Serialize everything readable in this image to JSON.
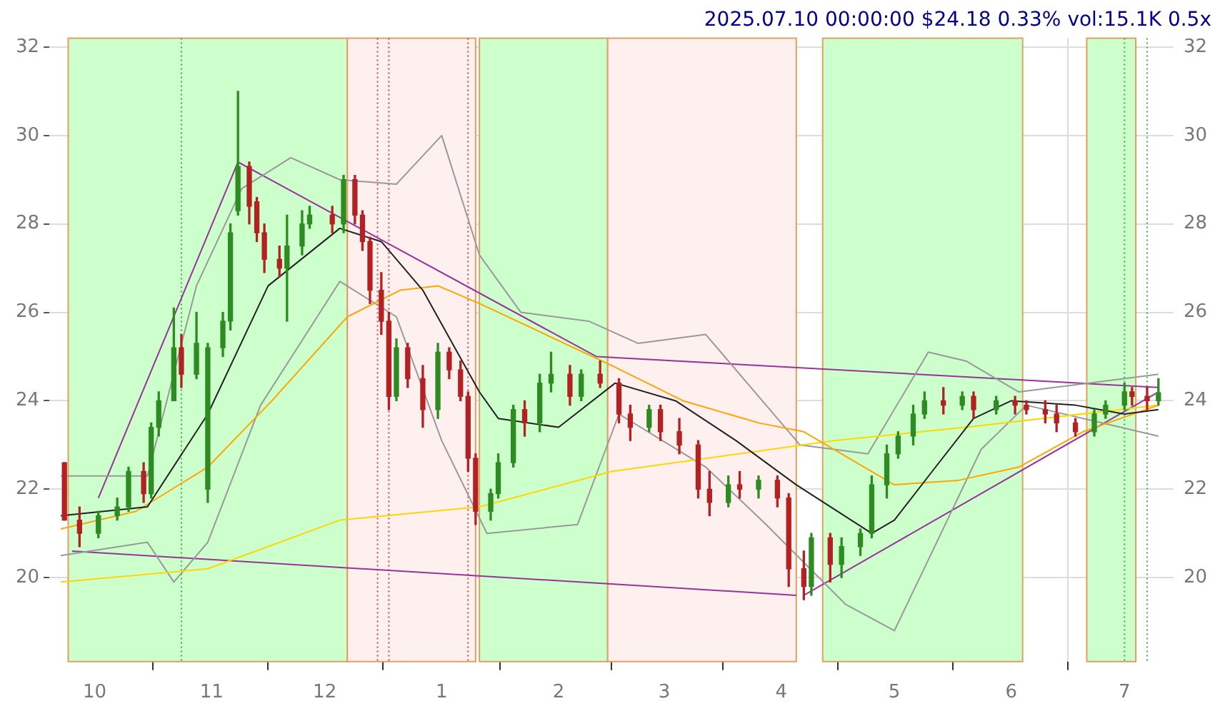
{
  "chart_data": {
    "type": "candlestick",
    "title": "2025.07.10 00:00:00 $24.18 0.33% vol:15.1K 0.5x",
    "x": [
      "2024-09-23",
      "2024-09-27",
      "2024-10-02",
      "2024-10-07",
      "2024-10-10",
      "2024-10-14",
      "2024-10-16",
      "2024-10-18",
      "2024-10-22",
      "2024-10-24",
      "2024-10-28",
      "2024-10-31",
      "2024-11-04",
      "2024-11-06",
      "2024-11-08",
      "2024-11-11",
      "2024-11-13",
      "2024-11-15",
      "2024-11-19",
      "2024-11-21",
      "2024-11-25",
      "2024-11-27",
      "2024-12-03",
      "2024-12-06",
      "2024-12-09",
      "2024-12-11",
      "2024-12-13",
      "2024-12-16",
      "2024-12-18",
      "2024-12-20",
      "2024-12-23",
      "2024-12-27",
      "2024-12-31",
      "2025-01-03",
      "2025-01-06",
      "2025-01-08",
      "2025-01-10",
      "2025-01-14",
      "2025-01-16",
      "2025-01-20",
      "2025-01-23",
      "2025-01-27",
      "2025-01-30",
      "2025-02-04",
      "2025-02-07",
      "2025-02-12",
      "2025-02-17",
      "2025-02-20",
      "2025-02-25",
      "2025-02-28",
      "2025-03-05",
      "2025-03-10",
      "2025-03-13",
      "2025-03-18",
      "2025-03-21",
      "2025-03-26",
      "2025-03-31",
      "2025-04-03",
      "2025-04-07",
      "2025-04-09",
      "2025-04-14",
      "2025-04-17",
      "2025-04-22",
      "2025-04-25",
      "2025-04-29",
      "2025-05-02",
      "2025-05-06",
      "2025-05-09",
      "2025-05-14",
      "2025-05-19",
      "2025-05-22",
      "2025-05-28",
      "2025-06-02",
      "2025-06-05",
      "2025-06-10",
      "2025-06-13",
      "2025-06-18",
      "2025-06-23",
      "2025-06-26",
      "2025-07-01",
      "2025-07-03",
      "2025-07-07",
      "2025-07-10"
    ],
    "ohlc": [
      [
        22.6,
        22.6,
        21.3,
        21.3
      ],
      [
        21.3,
        21.6,
        20.7,
        21.0
      ],
      [
        21.0,
        21.5,
        20.9,
        21.4
      ],
      [
        21.4,
        21.8,
        21.3,
        21.6
      ],
      [
        21.6,
        22.5,
        21.5,
        22.4
      ],
      [
        22.4,
        22.6,
        21.7,
        21.9
      ],
      [
        21.9,
        23.5,
        21.8,
        23.4
      ],
      [
        23.4,
        24.2,
        23.2,
        24.0
      ],
      [
        24.0,
        26.1,
        24.0,
        25.2
      ],
      [
        25.2,
        25.5,
        24.3,
        24.6
      ],
      [
        24.6,
        26.0,
        24.5,
        25.3
      ],
      [
        22.0,
        25.3,
        21.7,
        25.2
      ],
      [
        25.2,
        26.0,
        25.0,
        25.8
      ],
      [
        25.8,
        28.0,
        25.6,
        27.8
      ],
      [
        28.3,
        31.0,
        28.2,
        29.3
      ],
      [
        29.3,
        29.4,
        28.0,
        28.4
      ],
      [
        28.5,
        28.6,
        27.6,
        27.8
      ],
      [
        27.8,
        28.0,
        26.9,
        27.2
      ],
      [
        27.2,
        27.5,
        26.8,
        27.0
      ],
      [
        27.0,
        28.2,
        25.8,
        27.5
      ],
      [
        27.5,
        28.3,
        27.3,
        28.0
      ],
      [
        28.0,
        28.4,
        27.9,
        28.2
      ],
      [
        28.2,
        28.4,
        27.8,
        28.0
      ],
      [
        28.0,
        29.1,
        27.8,
        29.0
      ],
      [
        29.0,
        29.1,
        28.0,
        28.2
      ],
      [
        28.2,
        28.3,
        27.4,
        27.6
      ],
      [
        27.6,
        27.7,
        26.2,
        26.5
      ],
      [
        26.5,
        26.9,
        25.5,
        25.8
      ],
      [
        25.8,
        26.0,
        23.8,
        24.1
      ],
      [
        24.1,
        25.4,
        24.0,
        25.2
      ],
      [
        25.2,
        25.3,
        24.3,
        24.5
      ],
      [
        24.5,
        24.8,
        23.4,
        23.8
      ],
      [
        23.8,
        25.3,
        23.6,
        25.1
      ],
      [
        25.1,
        25.2,
        24.5,
        24.7
      ],
      [
        24.7,
        24.9,
        24.0,
        24.1
      ],
      [
        24.1,
        24.2,
        22.4,
        22.7
      ],
      [
        22.7,
        22.8,
        21.2,
        21.5
      ],
      [
        21.5,
        22.0,
        21.3,
        21.9
      ],
      [
        21.9,
        22.8,
        21.8,
        22.6
      ],
      [
        22.6,
        23.9,
        22.5,
        23.8
      ],
      [
        23.8,
        24.0,
        23.2,
        23.5
      ],
      [
        23.5,
        24.6,
        23.3,
        24.4
      ],
      [
        24.4,
        25.1,
        24.2,
        24.6
      ],
      [
        24.6,
        24.8,
        23.9,
        24.1
      ],
      [
        24.1,
        24.7,
        24.0,
        24.6
      ],
      [
        24.6,
        24.9,
        24.3,
        24.4
      ],
      [
        24.4,
        24.5,
        23.5,
        23.7
      ],
      [
        23.7,
        23.9,
        23.1,
        23.4
      ],
      [
        23.4,
        23.9,
        23.3,
        23.8
      ],
      [
        23.8,
        23.9,
        23.1,
        23.3
      ],
      [
        23.3,
        23.6,
        22.8,
        23.0
      ],
      [
        23.0,
        23.1,
        21.8,
        22.0
      ],
      [
        22.0,
        22.4,
        21.4,
        21.7
      ],
      [
        21.7,
        22.3,
        21.6,
        22.1
      ],
      [
        22.1,
        22.4,
        21.8,
        22.0
      ],
      [
        22.0,
        22.3,
        21.8,
        22.2
      ],
      [
        22.2,
        22.3,
        21.6,
        21.8
      ],
      [
        21.8,
        21.9,
        19.8,
        20.2
      ],
      [
        20.2,
        20.6,
        19.5,
        19.8
      ],
      [
        19.8,
        21.0,
        19.6,
        20.9
      ],
      [
        20.9,
        21.0,
        19.9,
        20.3
      ],
      [
        20.3,
        20.9,
        20.0,
        20.7
      ],
      [
        20.7,
        21.1,
        20.5,
        21.0
      ],
      [
        21.0,
        22.3,
        20.9,
        22.1
      ],
      [
        22.1,
        23.0,
        21.8,
        22.8
      ],
      [
        22.8,
        23.3,
        22.7,
        23.2
      ],
      [
        23.2,
        23.9,
        23.0,
        23.7
      ],
      [
        23.7,
        24.2,
        23.6,
        24.0
      ],
      [
        24.0,
        24.3,
        23.7,
        23.9
      ],
      [
        23.9,
        24.2,
        23.8,
        24.1
      ],
      [
        24.1,
        24.2,
        23.6,
        23.8
      ],
      [
        23.8,
        24.1,
        23.7,
        24.0
      ],
      [
        24.0,
        24.1,
        23.7,
        23.9
      ],
      [
        23.9,
        24.0,
        23.7,
        23.8
      ],
      [
        23.8,
        24.0,
        23.5,
        23.7
      ],
      [
        23.7,
        23.9,
        23.3,
        23.5
      ],
      [
        23.5,
        23.6,
        23.2,
        23.3
      ],
      [
        23.3,
        23.8,
        23.2,
        23.7
      ],
      [
        23.7,
        24.0,
        23.6,
        23.9
      ],
      [
        23.9,
        24.4,
        23.8,
        24.2
      ],
      [
        24.2,
        24.3,
        23.9,
        24.1
      ],
      [
        24.1,
        24.3,
        23.8,
        24.0
      ],
      [
        24.0,
        24.5,
        23.9,
        24.18
      ]
    ],
    "series": [
      {
        "type": "line",
        "color": "#222222",
        "x": [
          "2024-09-22",
          "2024-10-15",
          "2024-10-31",
          "2024-11-16",
          "2024-12-05",
          "2024-12-16",
          "2024-12-27",
          "2025-01-11",
          "2025-01-16",
          "2025-02-01",
          "2025-02-16",
          "2025-03-04",
          "2025-03-20",
          "2025-04-05",
          "2025-04-25",
          "2025-05-01",
          "2025-05-11",
          "2025-05-22",
          "2025-06-01",
          "2025-06-18",
          "2025-07-01",
          "2025-07-10"
        ],
        "values": [
          21.4,
          21.6,
          23.7,
          26.6,
          27.9,
          27.6,
          26.5,
          24.2,
          23.6,
          23.4,
          24.4,
          24.0,
          23.1,
          22.1,
          21.0,
          21.3,
          22.4,
          23.6,
          24.0,
          23.9,
          23.7,
          23.8
        ]
      },
      {
        "type": "line",
        "color": "#ffa500",
        "x": [
          "2024-09-22",
          "2024-10-12",
          "2024-10-31",
          "2024-11-17",
          "2024-12-07",
          "2024-12-21",
          "2024-12-31",
          "2025-01-11",
          "2025-02-15",
          "2025-03-06",
          "2025-03-26",
          "2025-04-07",
          "2025-05-01",
          "2025-05-18",
          "2025-06-03",
          "2025-06-20",
          "2025-07-10"
        ],
        "values": [
          21.1,
          21.5,
          22.5,
          24.0,
          25.9,
          26.5,
          26.6,
          26.2,
          24.8,
          24.0,
          23.5,
          23.3,
          22.1,
          22.2,
          22.5,
          23.3,
          23.9
        ]
      },
      {
        "type": "line",
        "color": "#ffd700",
        "x": [
          "2024-09-22",
          "2024-10-31",
          "2024-12-05",
          "2025-01-11",
          "2025-02-15",
          "2025-04-15",
          "2025-05-20",
          "2025-07-10"
        ],
        "values": [
          19.9,
          20.2,
          21.3,
          21.6,
          22.4,
          23.1,
          23.4,
          23.9
        ]
      },
      {
        "type": "line",
        "color": "#999999",
        "x": [
          "2024-09-22",
          "2024-10-15",
          "2024-10-28",
          "2024-11-09",
          "2024-11-22",
          "2024-12-05",
          "2024-12-20",
          "2025-01-01",
          "2025-01-11",
          "2025-01-22",
          "2025-02-09",
          "2025-02-22",
          "2025-03-12",
          "2025-03-24",
          "2025-04-06",
          "2025-04-24",
          "2025-05-10",
          "2025-05-20",
          "2025-06-03",
          "2025-07-10"
        ],
        "values": [
          22.3,
          22.3,
          26.6,
          28.8,
          29.5,
          29.0,
          28.9,
          30.0,
          27.3,
          26.0,
          25.8,
          25.3,
          25.5,
          24.3,
          23.0,
          22.8,
          25.1,
          24.9,
          24.2,
          24.6
        ]
      },
      {
        "type": "line",
        "color": "#999999",
        "x": [
          "2024-09-22",
          "2024-10-15",
          "2024-10-22",
          "2024-10-31",
          "2024-11-14",
          "2024-12-05",
          "2024-12-20",
          "2025-01-01",
          "2025-01-13",
          "2025-02-06",
          "2025-02-17",
          "2025-03-12",
          "2025-03-28",
          "2025-04-18",
          "2025-05-01",
          "2025-05-10",
          "2025-05-24",
          "2025-06-05",
          "2025-07-10"
        ],
        "values": [
          20.5,
          20.8,
          19.9,
          20.8,
          23.9,
          26.7,
          25.9,
          23.1,
          21.0,
          21.2,
          23.7,
          22.5,
          21.2,
          19.4,
          18.8,
          20.4,
          22.9,
          23.9,
          23.2
        ]
      },
      {
        "type": "line",
        "color": "#993399",
        "x": [
          "2024-09-25",
          "2025-04-05"
        ],
        "values": [
          20.6,
          19.6
        ]
      },
      {
        "type": "line",
        "color": "#993399",
        "x": [
          "2024-10-02",
          "2024-11-08"
        ],
        "values": [
          21.8,
          29.4
        ]
      },
      {
        "type": "line",
        "color": "#993399",
        "x": [
          "2024-11-08",
          "2025-02-11",
          "2025-07-10"
        ],
        "values": [
          29.4,
          25.0,
          24.3
        ]
      },
      {
        "type": "line",
        "color": "#993399",
        "x": [
          "2025-04-07",
          "2025-07-10"
        ],
        "values": [
          19.6,
          24.2
        ]
      }
    ],
    "bands": [
      {
        "axis": "x",
        "from": "2024-09-24",
        "to": "2024-12-07",
        "color": "#ccffcc"
      },
      {
        "axis": "x",
        "from": "2024-12-07",
        "to": "2025-01-10",
        "color": "#fff0f0"
      },
      {
        "axis": "x",
        "from": "2025-01-11",
        "to": "2025-02-14",
        "color": "#ccffcc"
      },
      {
        "axis": "x",
        "from": "2025-02-14",
        "to": "2025-04-05",
        "color": "#fff0f0"
      },
      {
        "axis": "x",
        "from": "2025-04-12",
        "to": "2025-06-04",
        "color": "#ccffcc"
      },
      {
        "axis": "x",
        "from": "2025-06-21",
        "to": "2025-07-04",
        "color": "#ccffcc"
      }
    ],
    "ref_lines": [
      {
        "axis": "x",
        "value": "2024-10-24",
        "color": "#44aa44",
        "line_style": "dotted"
      },
      {
        "axis": "x",
        "value": "2024-12-15",
        "color": "#cc4444",
        "line_style": "dotted"
      },
      {
        "axis": "x",
        "value": "2024-12-18",
        "color": "#cc4444",
        "line_style": "dotted"
      },
      {
        "axis": "x",
        "value": "2025-01-08",
        "color": "#cc4444",
        "line_style": "dotted"
      },
      {
        "axis": "x",
        "value": "2025-07-01",
        "color": "#44aa44",
        "line_style": "dotted"
      },
      {
        "axis": "x",
        "value": "2025-07-07",
        "color": "#44aa44",
        "line_style": "dotted"
      }
    ],
    "xlim": [
      "2024-09-19",
      "2025-07-14"
    ],
    "xticks": [
      {
        "value": "2024-10-01",
        "label": "10"
      },
      {
        "value": "2024-11-01",
        "label": "11"
      },
      {
        "value": "2024-12-01",
        "label": "12"
      },
      {
        "value": "2025-01-01",
        "label": "1"
      },
      {
        "value": "2025-02-01",
        "label": "2"
      },
      {
        "value": "2025-03-01",
        "label": "3"
      },
      {
        "value": "2025-04-01",
        "label": "4"
      },
      {
        "value": "2025-05-01",
        "label": "5"
      },
      {
        "value": "2025-06-01",
        "label": "6"
      },
      {
        "value": "2025-07-01",
        "label": "7"
      }
    ],
    "ylim": [
      18.1,
      32.2
    ],
    "yticks": [
      20,
      22,
      24,
      26,
      28,
      30,
      32
    ],
    "y2lim": [
      18.1,
      32.2
    ],
    "y2ticks": [
      20,
      22,
      24,
      26,
      28,
      30,
      32
    ],
    "grid": true
  }
}
